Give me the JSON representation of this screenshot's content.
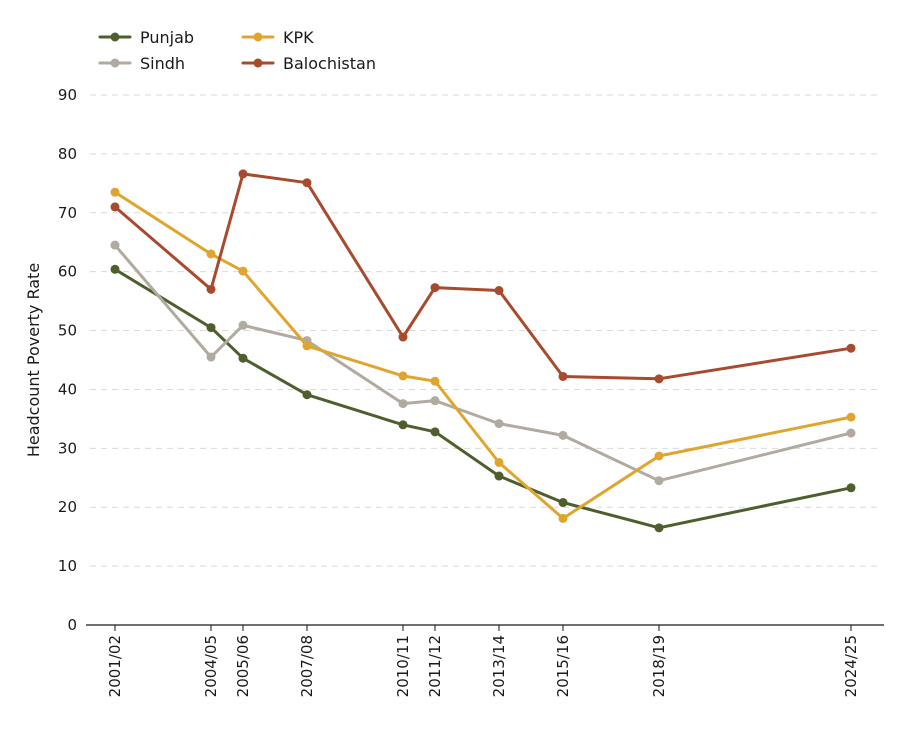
{
  "chart_data": {
    "type": "line",
    "title": "",
    "xlabel": "",
    "ylabel": "Headcount Poverty Rate",
    "ylim": [
      0,
      90
    ],
    "yticks": [
      0,
      10,
      20,
      30,
      40,
      50,
      60,
      70,
      80,
      90
    ],
    "grid": "horizontal dashed",
    "legend_position": "top-left",
    "x": [
      "2001/02",
      "2004/05",
      "2005/06",
      "2007/08",
      "2010/11",
      "2011/12",
      "2013/14",
      "2015/16",
      "2018/19",
      "2024/25"
    ],
    "x_positions": [
      2001.5,
      2004.5,
      2005.5,
      2007.5,
      2010.5,
      2011.5,
      2013.5,
      2015.5,
      2018.5,
      2024.5
    ],
    "series": [
      {
        "name": "Punjab",
        "color": "#4e5e2c",
        "values": [
          60.4,
          50.5,
          45.3,
          39.1,
          34.0,
          32.8,
          25.3,
          20.8,
          16.5,
          23.3
        ]
      },
      {
        "name": "Sindh",
        "color": "#b0aa9f",
        "values": [
          64.5,
          45.5,
          50.9,
          48.3,
          37.6,
          38.1,
          34.2,
          32.2,
          24.5,
          32.6
        ]
      },
      {
        "name": "KPK",
        "color": "#e0a52e",
        "values": [
          73.5,
          63.0,
          60.1,
          47.4,
          42.3,
          41.4,
          27.6,
          18.1,
          28.7,
          35.3
        ]
      },
      {
        "name": "Balochistan",
        "color": "#a84a2e",
        "values": [
          71.0,
          57.0,
          76.6,
          75.1,
          48.9,
          57.3,
          56.8,
          42.2,
          41.8,
          47.0
        ]
      }
    ]
  }
}
